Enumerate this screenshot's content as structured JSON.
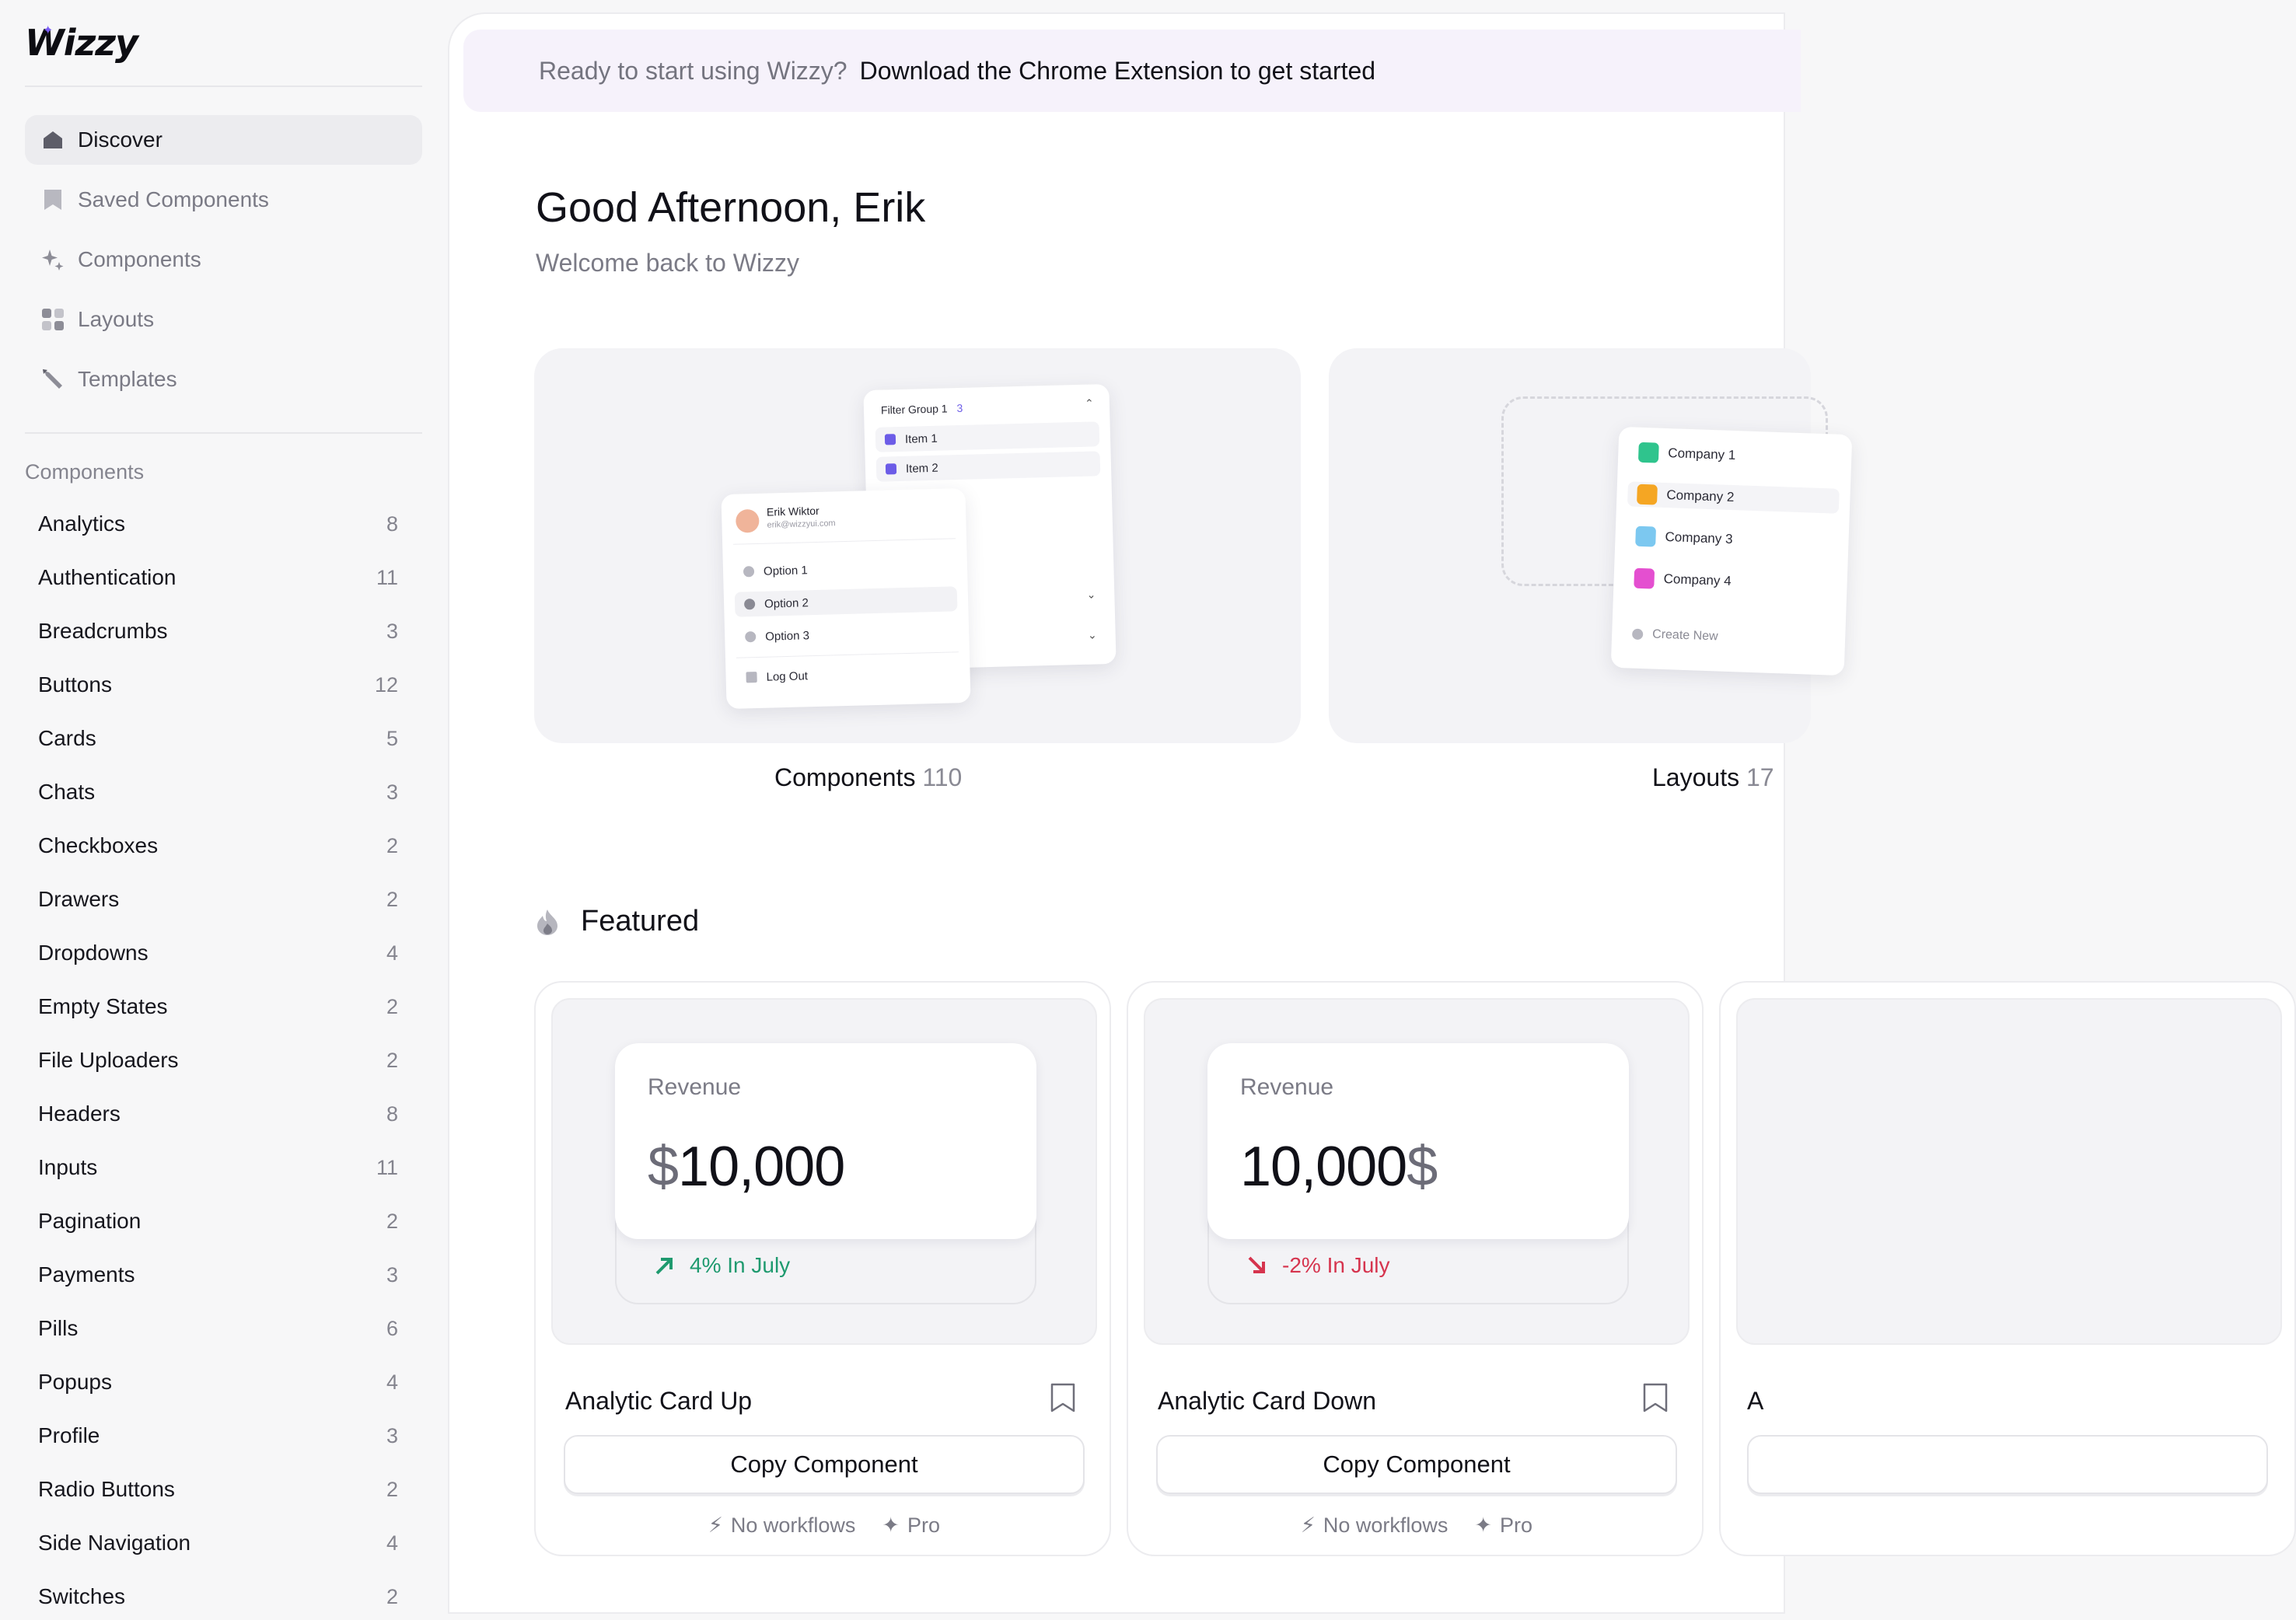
{
  "brand": {
    "logo_text": "Wizzy"
  },
  "sidebar": {
    "nav": [
      {
        "label": "Discover",
        "icon": "home-icon",
        "active": true
      },
      {
        "label": "Saved Components",
        "icon": "bookmark-icon"
      },
      {
        "label": "Components",
        "icon": "sparkle-icon"
      },
      {
        "label": "Layouts",
        "icon": "grid-icon"
      },
      {
        "label": "Templates",
        "icon": "pen-icon"
      }
    ],
    "section_title": "Components",
    "categories": [
      {
        "label": "Analytics",
        "count": "8"
      },
      {
        "label": "Authentication",
        "count": "11"
      },
      {
        "label": "Breadcrumbs",
        "count": "3"
      },
      {
        "label": "Buttons",
        "count": "12"
      },
      {
        "label": "Cards",
        "count": "5"
      },
      {
        "label": "Chats",
        "count": "3"
      },
      {
        "label": "Checkboxes",
        "count": "2"
      },
      {
        "label": "Drawers",
        "count": "2"
      },
      {
        "label": "Dropdowns",
        "count": "4"
      },
      {
        "label": "Empty States",
        "count": "2"
      },
      {
        "label": "File Uploaders",
        "count": "2"
      },
      {
        "label": "Headers",
        "count": "8"
      },
      {
        "label": "Inputs",
        "count": "11"
      },
      {
        "label": "Pagination",
        "count": "2"
      },
      {
        "label": "Payments",
        "count": "3"
      },
      {
        "label": "Pills",
        "count": "6"
      },
      {
        "label": "Popups",
        "count": "4"
      },
      {
        "label": "Profile",
        "count": "3"
      },
      {
        "label": "Radio Buttons",
        "count": "2"
      },
      {
        "label": "Side Navigation",
        "count": "4"
      },
      {
        "label": "Switches",
        "count": "2"
      }
    ]
  },
  "banner": {
    "muted": "Ready to start using Wizzy?",
    "link": "Download the Chrome Extension to get started"
  },
  "hero": {
    "greeting": "Good Afternoon, Erik",
    "subtitle": "Welcome back to Wizzy"
  },
  "previews": [
    {
      "label": "Components",
      "count": "110",
      "filter": {
        "title": "Filter Group 1",
        "badge": "3",
        "items": [
          "Item 1",
          "Item 2"
        ]
      },
      "profile": {
        "name": "Erik Wiktor",
        "email": "erik@wizzyui.com",
        "options": [
          "Option 1",
          "Option 2",
          "Option 3",
          "Log Out"
        ]
      }
    },
    {
      "label": "Layouts",
      "count": "17",
      "companies": [
        "Company 1",
        "Company 2",
        "Company 3",
        "Company 4"
      ],
      "create": "Create New"
    }
  ],
  "featured": {
    "title": "Featured",
    "cards": [
      {
        "stat_label": "Revenue",
        "currency_prefix": "$",
        "value": "10,000",
        "currency_suffix": "",
        "trend": "4% In July",
        "direction": "up",
        "title": "Analytic Card Up",
        "button": "Copy Component",
        "meta1": "No workflows",
        "meta2": "Pro"
      },
      {
        "stat_label": "Revenue",
        "currency_prefix": "",
        "value": "10,000",
        "currency_suffix": "$",
        "trend": "-2% In July",
        "direction": "down",
        "title": "Analytic Card Down",
        "button": "Copy Component",
        "meta1": "No workflows",
        "meta2": "Pro"
      },
      {
        "title": "A"
      }
    ]
  },
  "colors": {
    "accent": "#6c5ce7",
    "up": "#1f9a6f",
    "down": "#d6344e",
    "banner_bg": "#f6f2fb"
  }
}
